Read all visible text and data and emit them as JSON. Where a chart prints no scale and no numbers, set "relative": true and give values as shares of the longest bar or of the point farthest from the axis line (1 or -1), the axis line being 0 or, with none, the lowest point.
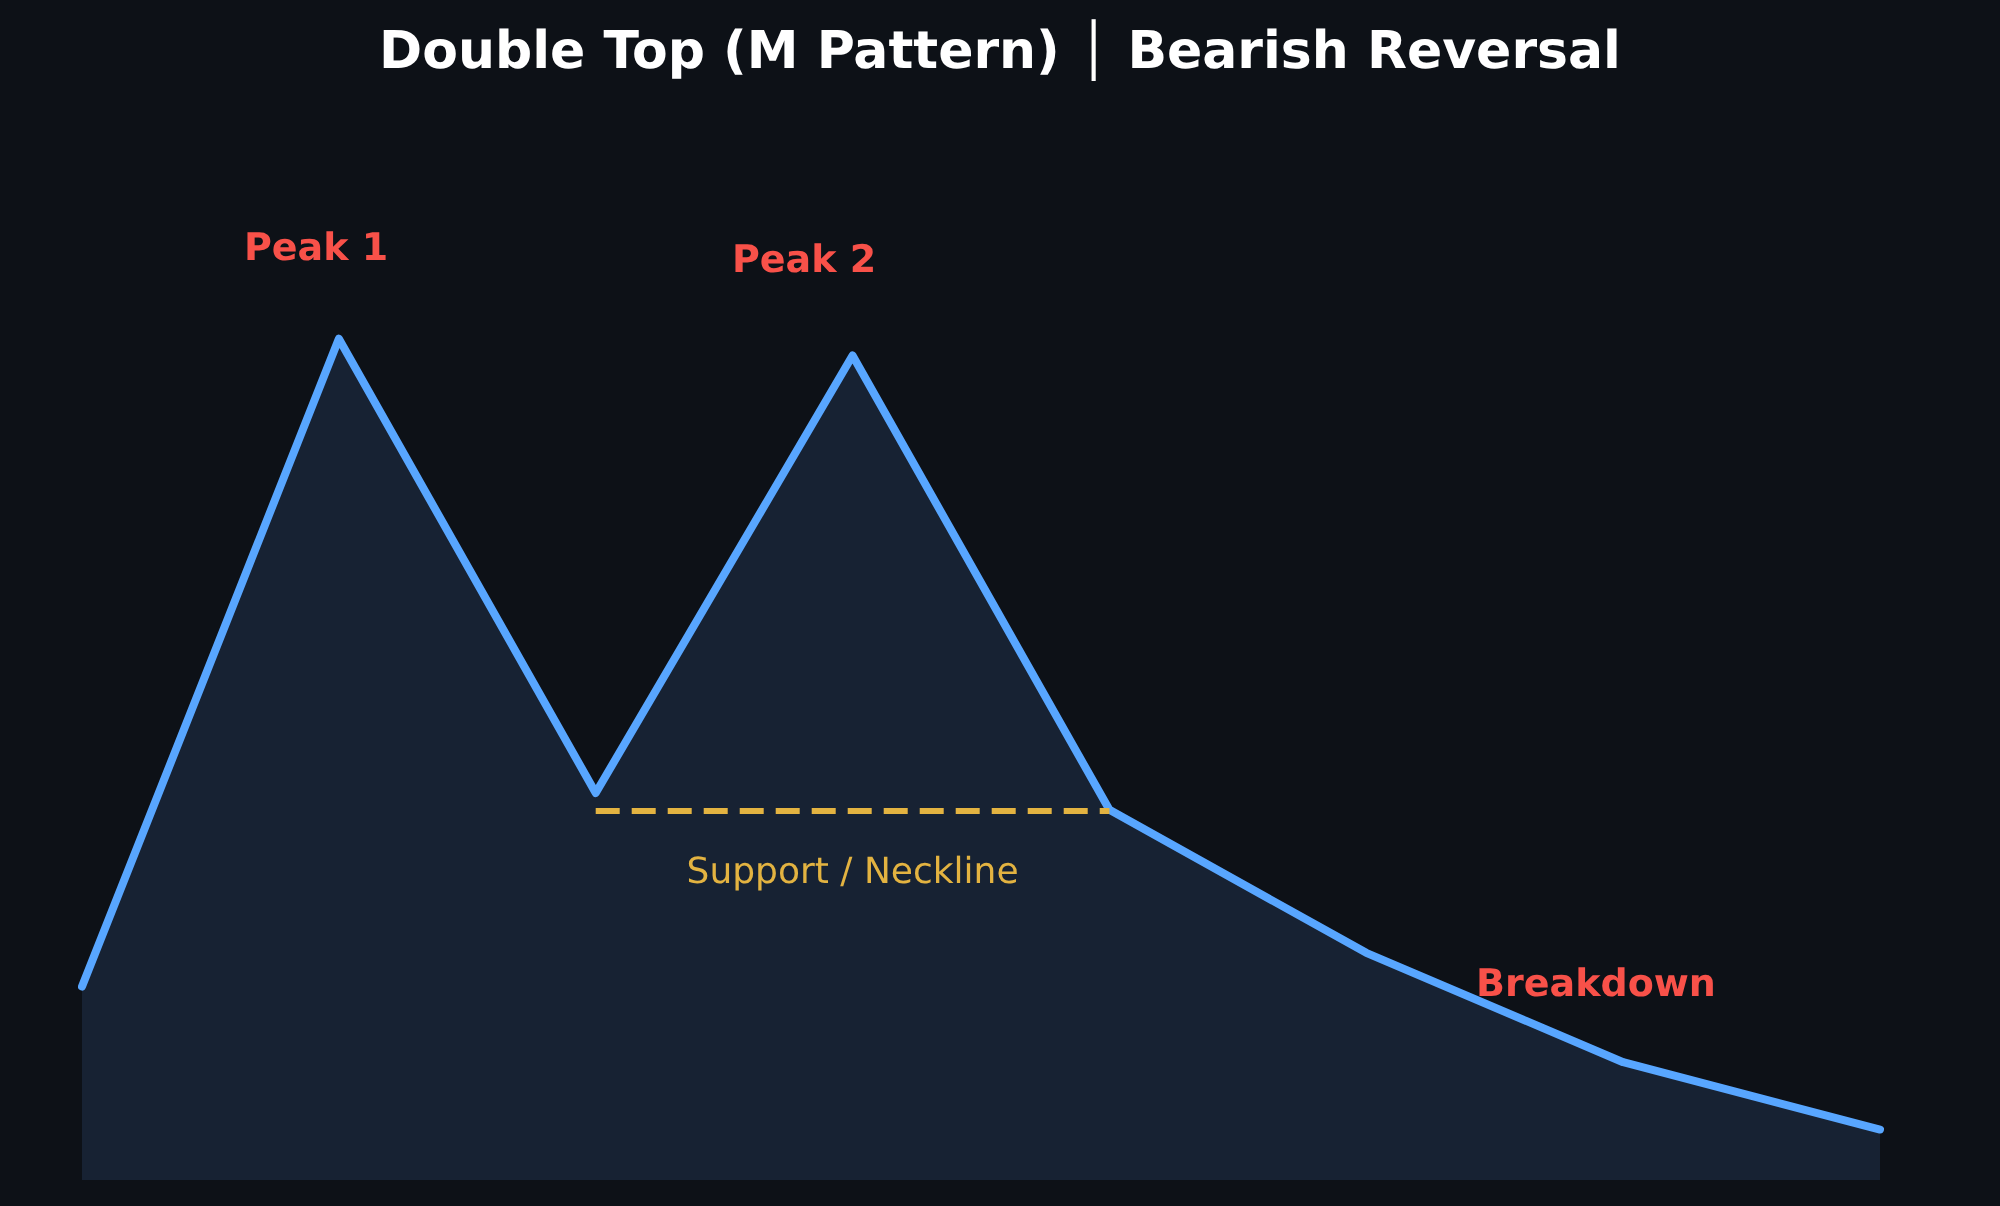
{
  "chart_data": {
    "type": "area",
    "title": "Double Top (M Pattern) │ Bearish Reversal",
    "relative": true,
    "categories": [
      null,
      null,
      null,
      null,
      null,
      null,
      null,
      null
    ],
    "series": [
      {
        "color": "#58a6ff",
        "values": [
          0.23,
          1,
          0.46,
          0.98,
          0.44,
          0.27,
          0.14,
          0.06
        ]
      }
    ],
    "ref_lines": [
      {
        "axis": "y",
        "value": 0.44,
        "label": "Support / Neckline",
        "color": "#e3b341",
        "line_style": "dashed"
      }
    ],
    "annotations": [
      "Peak 1",
      "Peak 2",
      "Breakdown"
    ],
    "grid": false,
    "marker": "none",
    "line_style": "solid"
  }
}
